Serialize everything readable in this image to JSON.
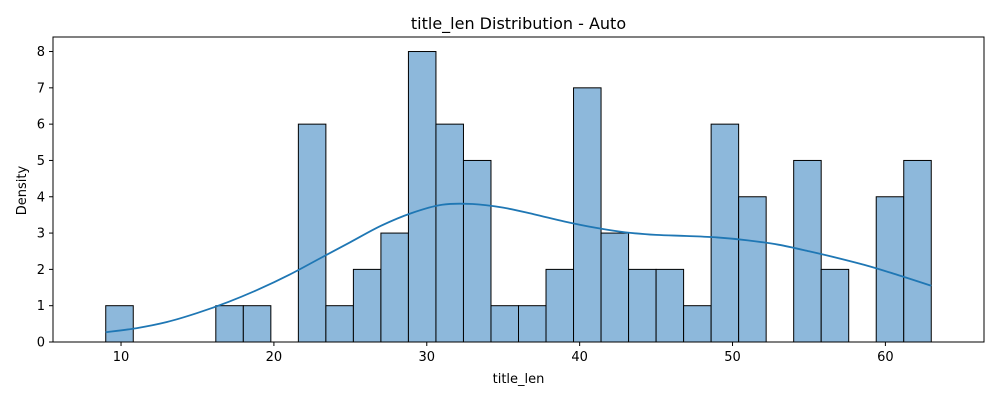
{
  "chart_data": {
    "type": "histogram",
    "title": "title_len Distribution - Auto",
    "xlabel": "title_len",
    "ylabel": "Density",
    "xlim": [
      5.55,
      66.45
    ],
    "ylim": [
      0,
      8.4
    ],
    "x_ticks": [
      10,
      20,
      30,
      40,
      50,
      60
    ],
    "y_ticks": [
      0,
      1,
      2,
      3,
      4,
      5,
      6,
      7,
      8
    ],
    "bin_edges": [
      9.0,
      10.8,
      12.6,
      14.4,
      16.2,
      18.0,
      19.8,
      21.6,
      23.4,
      25.2,
      27.0,
      28.8,
      30.6,
      32.4,
      34.2,
      36.0,
      37.8,
      39.6,
      41.4,
      43.2,
      45.0,
      46.8,
      48.6,
      50.4,
      52.2,
      54.0,
      55.8,
      57.6,
      59.4,
      61.2,
      63.0
    ],
    "counts": [
      1,
      0,
      0,
      0,
      1,
      1,
      0,
      6,
      1,
      2,
      3,
      8,
      6,
      5,
      1,
      1,
      2,
      7,
      3,
      2,
      2,
      1,
      6,
      4,
      0,
      5,
      2,
      0,
      4,
      5
    ],
    "kde": {
      "x": [
        9,
        11,
        13,
        15,
        17,
        19,
        21,
        23,
        25,
        27,
        29,
        31,
        33,
        35,
        37,
        39,
        41,
        43,
        45,
        47,
        49,
        51,
        53,
        55,
        57,
        59,
        61,
        63
      ],
      "y": [
        0.27,
        0.38,
        0.55,
        0.8,
        1.1,
        1.45,
        1.85,
        2.3,
        2.75,
        3.2,
        3.55,
        3.78,
        3.8,
        3.7,
        3.52,
        3.32,
        3.15,
        3.02,
        2.95,
        2.92,
        2.88,
        2.8,
        2.68,
        2.5,
        2.3,
        2.08,
        1.82,
        1.55
      ]
    },
    "bar_fill": "#8db8db",
    "bar_edge": "#000000",
    "kde_color": "#1f77b4",
    "grid": false,
    "legend": "none"
  }
}
